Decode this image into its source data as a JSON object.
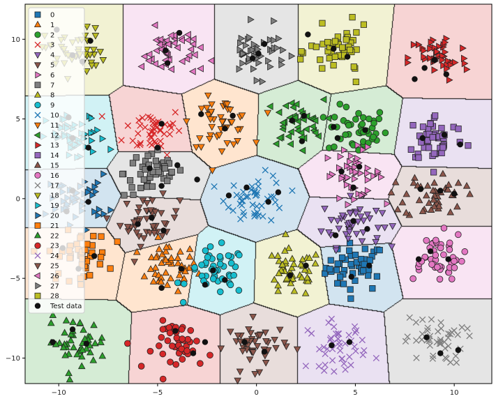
{
  "chart_data": {
    "type": "scatter",
    "title": "",
    "xlabel": "",
    "ylabel": "",
    "xlim": [
      -11.7,
      11.9
    ],
    "ylim": [
      -11.6,
      12.2
    ],
    "x_ticks": [
      -10,
      -5,
      0,
      5,
      10
    ],
    "y_ticks": [
      -10,
      -5,
      0,
      5,
      10
    ],
    "x_tick_labels": [
      "−10",
      "−5",
      "0",
      "5",
      "10"
    ],
    "y_tick_labels": [
      "−10",
      "−5",
      "0",
      "5",
      "10"
    ],
    "grid": false,
    "legend_position": "upper-left",
    "background": "decision regions (Voronoi-like) tinted by nearest cluster",
    "series": [
      {
        "name": "0",
        "marker": "square",
        "color": "#1f77b4",
        "center": [
          5.0,
          -4.3
        ]
      },
      {
        "name": "1",
        "marker": "triangle-up",
        "color": "#ff7f0e",
        "center": [
          -4.5,
          -4.3
        ]
      },
      {
        "name": "2",
        "marker": "circle",
        "color": "#2ca02c",
        "center": [
          5.1,
          4.3
        ]
      },
      {
        "name": "3",
        "marker": "x",
        "color": "#d62728",
        "center": [
          -5.2,
          4.3
        ]
      },
      {
        "name": "4",
        "marker": "triangle-down",
        "color": "#9467bd",
        "center": [
          4.8,
          -1.5
        ]
      },
      {
        "name": "5",
        "marker": "triangle-down",
        "color": "#8c564b",
        "center": [
          -5.4,
          -1.4
        ]
      },
      {
        "name": "6",
        "marker": "triangle-right",
        "color": "#e377c2",
        "center": [
          4.9,
          1.6
        ]
      },
      {
        "name": "7",
        "marker": "square",
        "color": "#7f7f7f",
        "center": [
          -5.2,
          1.6
        ]
      },
      {
        "name": "8",
        "marker": "triangle-up",
        "color": "#bcbd22",
        "center": [
          1.8,
          -4.7
        ]
      },
      {
        "name": "9",
        "marker": "circle",
        "color": "#17becf",
        "center": [
          -2.0,
          -4.6
        ]
      },
      {
        "name": "10",
        "marker": "x",
        "color": "#1f77b4",
        "center": [
          0.0,
          0.0
        ]
      },
      {
        "name": "11",
        "marker": "triangle-down",
        "color": "#ff7f0e",
        "center": [
          -1.8,
          4.8
        ]
      },
      {
        "name": "12",
        "marker": "triangle-left",
        "color": "#2ca02c",
        "center": [
          1.9,
          4.7
        ]
      },
      {
        "name": "13",
        "marker": "triangle-right",
        "color": "#d62728",
        "center": [
          9.2,
          8.8
        ]
      },
      {
        "name": "14",
        "marker": "square",
        "color": "#9467bd",
        "center": [
          9.1,
          3.8
        ]
      },
      {
        "name": "15",
        "marker": "triangle-up",
        "color": "#8c564b",
        "center": [
          9.0,
          0.2
        ]
      },
      {
        "name": "16",
        "marker": "circle",
        "color": "#e377c2",
        "center": [
          9.0,
          -3.6
        ]
      },
      {
        "name": "17",
        "marker": "x",
        "color": "#7f7f7f",
        "center": [
          9.0,
          -8.9
        ]
      },
      {
        "name": "18",
        "marker": "triangle-down",
        "color": "#bcbd22",
        "center": [
          -9.2,
          9.2
        ]
      },
      {
        "name": "19",
        "marker": "triangle-right",
        "color": "#17becf",
        "center": [
          -9.1,
          3.8
        ]
      },
      {
        "name": "20",
        "marker": "triangle-right",
        "color": "#1f77b4",
        "center": [
          -9.0,
          0.0
        ]
      },
      {
        "name": "21",
        "marker": "square",
        "color": "#ff7f0e",
        "center": [
          -9.0,
          -3.6
        ]
      },
      {
        "name": "22",
        "marker": "triangle-up",
        "color": "#2ca02c",
        "center": [
          -9.1,
          -9.0
        ]
      },
      {
        "name": "23",
        "marker": "circle",
        "color": "#d62728",
        "center": [
          -3.7,
          -9.2
        ]
      },
      {
        "name": "24",
        "marker": "x",
        "color": "#9467bd",
        "center": [
          4.1,
          -9.2
        ]
      },
      {
        "name": "25",
        "marker": "triangle-down",
        "color": "#8c564b",
        "center": [
          0.0,
          -9.2
        ]
      },
      {
        "name": "26",
        "marker": "triangle-left",
        "color": "#e377c2",
        "center": [
          -4.3,
          9.2
        ]
      },
      {
        "name": "27",
        "marker": "triangle-right",
        "color": "#7f7f7f",
        "center": [
          0.0,
          9.2
        ]
      },
      {
        "name": "28",
        "marker": "square",
        "color": "#bcbd22",
        "center": [
          4.2,
          9.2
        ]
      },
      {
        "name": "Test data",
        "marker": "circle",
        "color": "#111111"
      }
    ],
    "test_points": [
      [
        -10.1,
        10.6
      ],
      [
        -9.3,
        9.0
      ],
      [
        -8.8,
        8.6
      ],
      [
        -8.4,
        9.9
      ],
      [
        -4.6,
        9.3
      ],
      [
        -4.5,
        8.5
      ],
      [
        -3.9,
        10.4
      ],
      [
        -0.2,
        8.8
      ],
      [
        0.1,
        9.1
      ],
      [
        0.4,
        9.7
      ],
      [
        2.6,
        10.3
      ],
      [
        3.9,
        9.4
      ],
      [
        4.6,
        8.9
      ],
      [
        8.0,
        7.5
      ],
      [
        8.5,
        8.2
      ],
      [
        9.0,
        8.7
      ],
      [
        9.6,
        7.8
      ],
      [
        -2.8,
        5.3
      ],
      [
        -1.2,
        5.2
      ],
      [
        -1.6,
        4.4
      ],
      [
        -4.8,
        4.7
      ],
      [
        -5.0,
        3.2
      ],
      [
        -5.4,
        1.9
      ],
      [
        -4.8,
        0.8
      ],
      [
        -4.0,
        2.1
      ],
      [
        -3.0,
        1.2
      ],
      [
        -9.5,
        5.1
      ],
      [
        -9.3,
        3.8
      ],
      [
        -8.5,
        3.2
      ],
      [
        -9.3,
        0.5
      ],
      [
        -8.5,
        -0.2
      ],
      [
        -9.6,
        -0.8
      ],
      [
        -1.4,
        0.2
      ],
      [
        -0.5,
        0.7
      ],
      [
        0.6,
        -0.2
      ],
      [
        1.1,
        0.4
      ],
      [
        1.8,
        4.9
      ],
      [
        2.4,
        5.2
      ],
      [
        2.3,
        3.6
      ],
      [
        3.9,
        4.5
      ],
      [
        4.1,
        3.8
      ],
      [
        5.5,
        4.3
      ],
      [
        8.4,
        3.8
      ],
      [
        9.5,
        4.0
      ],
      [
        10.3,
        3.4
      ],
      [
        4.3,
        1.7
      ],
      [
        5.2,
        2.0
      ],
      [
        4.9,
        0.7
      ],
      [
        8.3,
        0.6
      ],
      [
        9.3,
        0.5
      ],
      [
        10.0,
        0.3
      ],
      [
        4.9,
        -1.4
      ],
      [
        5.6,
        -1.9
      ],
      [
        4.0,
        -2.3
      ],
      [
        -5.3,
        -1.2
      ],
      [
        -6.0,
        -1.6
      ],
      [
        -4.7,
        -2.0
      ],
      [
        -9.8,
        -3.1
      ],
      [
        -9.0,
        -4.4
      ],
      [
        -8.2,
        -3.6
      ],
      [
        -3.8,
        -4.4
      ],
      [
        -4.8,
        -5.6
      ],
      [
        -2.2,
        -4.5
      ],
      [
        -1.6,
        -5.1
      ],
      [
        -2.6,
        -5.4
      ],
      [
        1.7,
        -4.8
      ],
      [
        2.5,
        -4.2
      ],
      [
        4.8,
        -4.9
      ],
      [
        5.7,
        -4.2
      ],
      [
        8.2,
        -3.8
      ],
      [
        8.8,
        -3.3
      ],
      [
        9.7,
        -3.8
      ],
      [
        -10.3,
        -9.0
      ],
      [
        -9.3,
        -8.2
      ],
      [
        -8.6,
        -9.1
      ],
      [
        -4.1,
        -8.3
      ],
      [
        -3.2,
        -9.7
      ],
      [
        -2.6,
        -9.0
      ],
      [
        -0.6,
        -9.0
      ],
      [
        0.4,
        -9.6
      ],
      [
        3.8,
        -9.2
      ],
      [
        4.7,
        -9.0
      ],
      [
        8.6,
        -8.7
      ],
      [
        9.3,
        -9.7
      ],
      [
        10.2,
        -9.5
      ]
    ]
  },
  "legend": {
    "entries": [
      "0",
      "1",
      "2",
      "3",
      "4",
      "5",
      "6",
      "7",
      "8",
      "9",
      "10",
      "11",
      "12",
      "13",
      "14",
      "15",
      "16",
      "17",
      "18",
      "19",
      "20",
      "21",
      "22",
      "23",
      "24",
      "25",
      "26",
      "27",
      "28",
      "Test data"
    ]
  }
}
